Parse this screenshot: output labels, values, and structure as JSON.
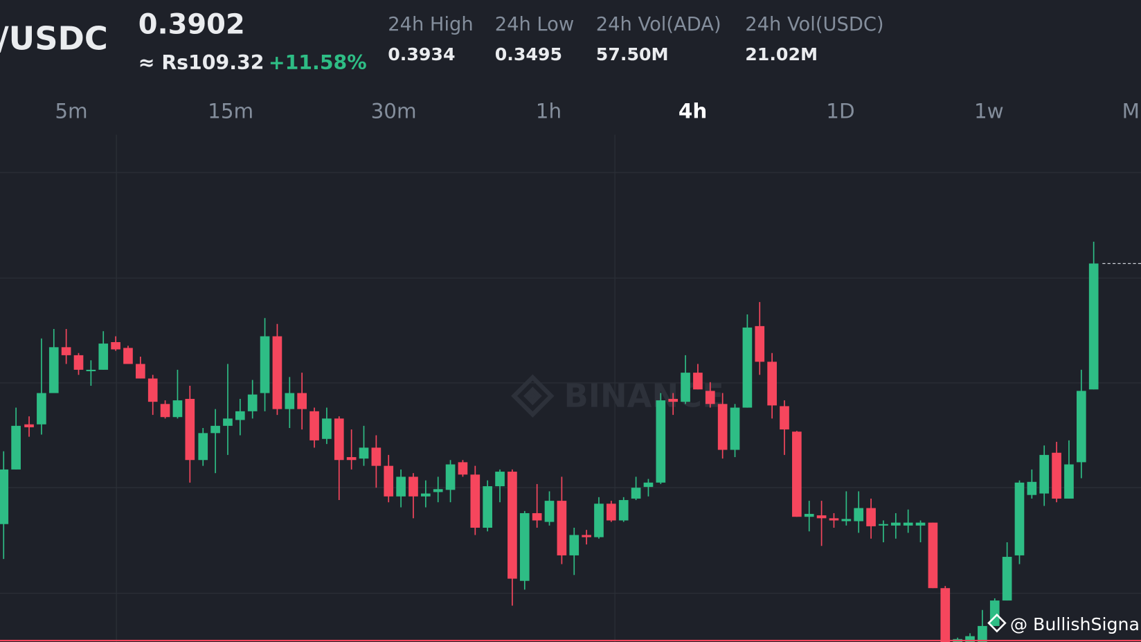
{
  "header": {
    "pair": "/USDC",
    "price": "0.3902",
    "fiat_price": "≈ Rs109.32",
    "change": "+11.58%"
  },
  "stats": [
    {
      "label": "24h High",
      "value": "0.3934"
    },
    {
      "label": "24h Low",
      "value": "0.3495"
    },
    {
      "label": "24h Vol(ADA)",
      "value": "57.50M"
    },
    {
      "label": "24h Vol(USDC)",
      "value": "21.02M"
    }
  ],
  "timeframes": [
    "5m",
    "15m",
    "30m",
    "1h",
    "4h",
    "1D",
    "1w",
    "M"
  ],
  "watermark": "BINANCE",
  "credit": "@ BullishSignals"
}
